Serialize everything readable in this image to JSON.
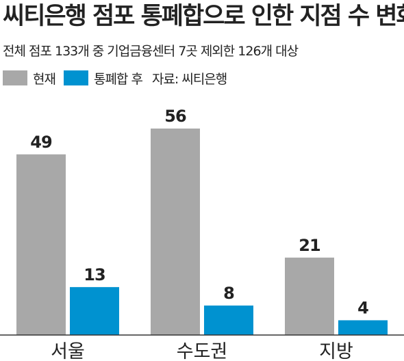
{
  "chart_data": {
    "type": "bar",
    "title": "씨티은행 점포 통폐합으로 인한 지점 수 변화",
    "subtitle": "전체 점포 133개 중 기업금융센터 7곳 제외한 126개 대상",
    "source": "자료: 씨티은행",
    "categories": [
      "서울",
      "수도권",
      "지방"
    ],
    "series": [
      {
        "name": "현재",
        "color": "#a8a8a8",
        "values": [
          49,
          56,
          21
        ]
      },
      {
        "name": "통폐합 후",
        "color": "#0092d0",
        "values": [
          13,
          8,
          4
        ]
      }
    ],
    "ylim": [
      0,
      56
    ],
    "grid": false,
    "legend": "top-left",
    "colors": {
      "axis": "#333333",
      "text": "#222222"
    }
  }
}
